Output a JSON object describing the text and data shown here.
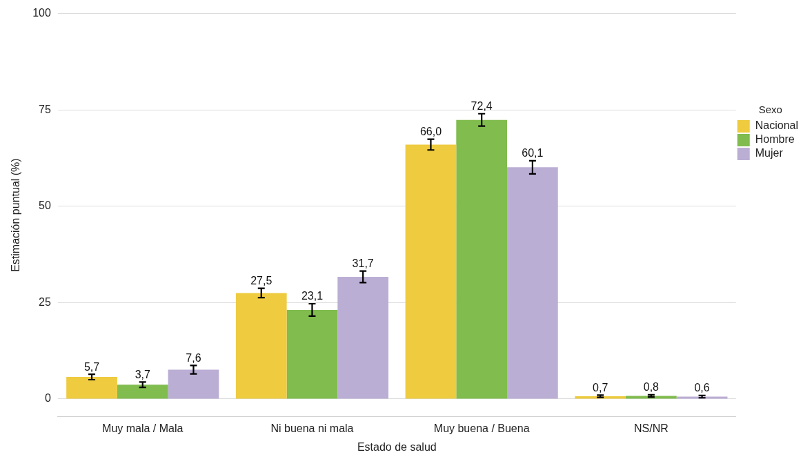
{
  "chart_data": {
    "type": "bar",
    "xlabel": "Estado de salud",
    "ylabel": "Estimación puntual (%)",
    "legend_title": "Sexo",
    "legend": "right",
    "grid": "y",
    "categories": [
      "Muy mala / Mala",
      "Ni buena ni mala",
      "Muy buena / Buena",
      "NS/NR"
    ],
    "ylim": [
      -4.6,
      100
    ],
    "yticks": [
      0,
      25,
      50,
      75,
      100
    ],
    "series": [
      {
        "name": "Nacional",
        "color": "#eecb3f",
        "values": [
          5.7,
          27.5,
          66.0,
          0.7
        ],
        "errors": [
          0.7,
          1.2,
          1.4,
          0.3
        ],
        "value_labels": [
          "5,7",
          "27,5",
          "66,0",
          "0,7"
        ]
      },
      {
        "name": "Hombre",
        "color": "#80bc4e",
        "values": [
          3.7,
          23.1,
          72.4,
          0.8
        ],
        "errors": [
          0.7,
          1.6,
          1.6,
          0.3
        ],
        "value_labels": [
          "3,7",
          "23,1",
          "72,4",
          "0,8"
        ]
      },
      {
        "name": "Mujer",
        "color": "#bbaed4",
        "values": [
          7.6,
          31.7,
          60.1,
          0.6
        ],
        "errors": [
          1.1,
          1.5,
          1.7,
          0.3
        ],
        "value_labels": [
          "7,6",
          "31,7",
          "60,1",
          "0,6"
        ]
      }
    ]
  }
}
